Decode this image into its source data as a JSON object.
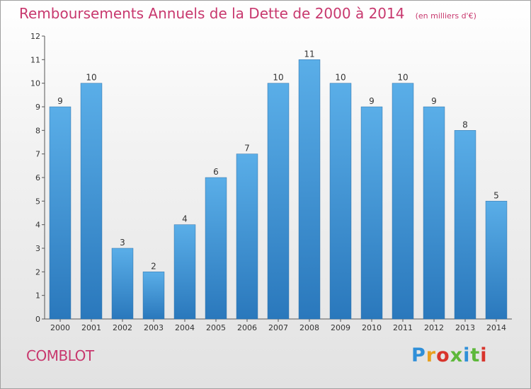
{
  "title": "Remboursements Annuels de la Dette de 2000 à 2014",
  "unit": "(en milliers d'€)",
  "commune": "COMBLOT",
  "brand": {
    "name": "Proxiti",
    "colors": [
      "#2f8fd8",
      "#e8a020",
      "#5db83a",
      "#d8342c"
    ]
  },
  "colors": {
    "accent": "#c8386e",
    "bar_top": "#5aaee8",
    "bar_bottom": "#2a78bc",
    "axis": "#555555"
  },
  "chart_data": {
    "type": "bar",
    "categories": [
      "2000",
      "2001",
      "2002",
      "2003",
      "2004",
      "2005",
      "2006",
      "2007",
      "2008",
      "2009",
      "2010",
      "2011",
      "2012",
      "2013",
      "2014"
    ],
    "values": [
      9,
      10,
      3,
      2,
      4,
      6,
      7,
      10,
      11,
      10,
      9,
      10,
      9,
      8,
      5
    ],
    "title": "Remboursements Annuels de la Dette de 2000 à 2014",
    "xlabel": "",
    "ylabel": "",
    "ylim": [
      0,
      12
    ],
    "yticks": [
      0,
      1,
      2,
      3,
      4,
      5,
      6,
      7,
      8,
      9,
      10,
      11,
      12
    ],
    "data_labels": true,
    "grid": false,
    "legend": false
  }
}
